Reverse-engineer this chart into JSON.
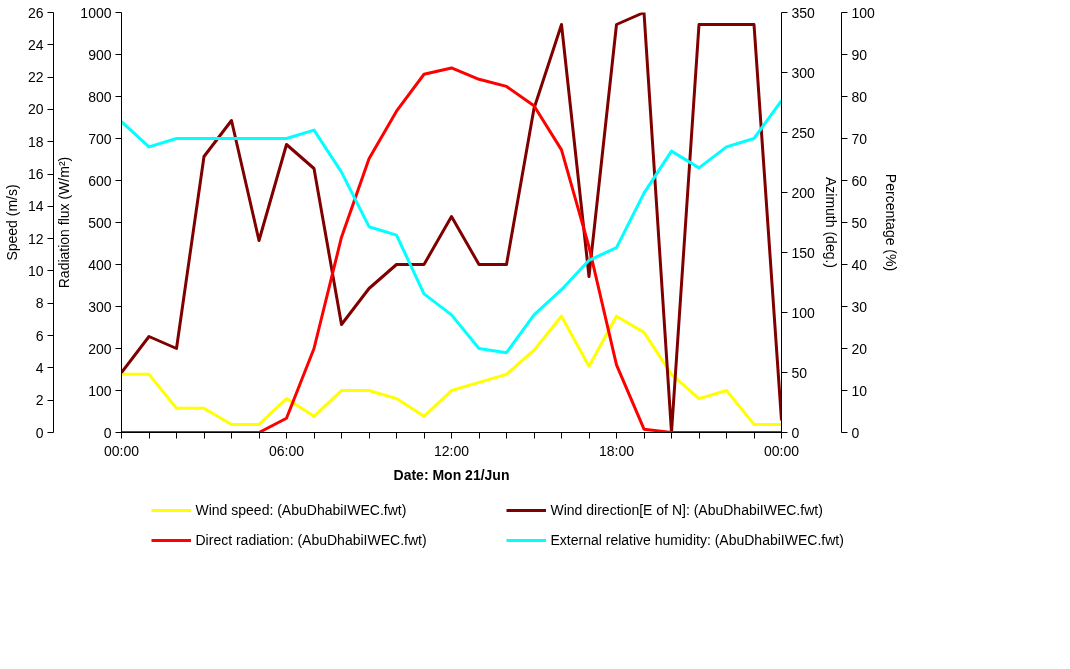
{
  "chart_data": [
    {
      "type": "line",
      "xlabel": "Date: Mon 21/Jun",
      "ylabel": "Speed (m/s)",
      "y2label": "Azimuth (deg.)",
      "x": [
        0,
        1,
        2,
        3,
        4,
        5,
        6,
        7,
        8,
        9,
        10,
        11,
        12,
        13,
        14,
        15,
        16,
        17,
        18,
        19,
        20,
        21,
        22,
        23,
        24
      ],
      "xlim": [
        0,
        24
      ],
      "xticks": [
        {
          "value": 0,
          "label": "00:00"
        },
        {
          "value": 1,
          "label": null
        },
        {
          "value": 2,
          "label": null
        },
        {
          "value": 3,
          "label": null
        },
        {
          "value": 4,
          "label": null
        },
        {
          "value": 5,
          "label": null
        },
        {
          "value": 6,
          "label": "06:00"
        },
        {
          "value": 7,
          "label": null
        },
        {
          "value": 8,
          "label": null
        },
        {
          "value": 9,
          "label": null
        },
        {
          "value": 10,
          "label": null
        },
        {
          "value": 11,
          "label": null
        },
        {
          "value": 12,
          "label": "12:00"
        },
        {
          "value": 13,
          "label": null
        },
        {
          "value": 14,
          "label": null
        },
        {
          "value": 15,
          "label": null
        },
        {
          "value": 16,
          "label": null
        },
        {
          "value": 17,
          "label": null
        },
        {
          "value": 18,
          "label": "18:00"
        },
        {
          "value": 19,
          "label": null
        },
        {
          "value": 20,
          "label": null
        },
        {
          "value": 21,
          "label": null
        },
        {
          "value": 22,
          "label": null
        },
        {
          "value": 23,
          "label": null
        },
        {
          "value": 24,
          "label": "00:00"
        }
      ],
      "ylim": [
        0,
        26
      ],
      "yticks": [
        0,
        2,
        4,
        6,
        8,
        10,
        12,
        14,
        16,
        18,
        20,
        22,
        24,
        26
      ],
      "y2lim": [
        0,
        350
      ],
      "y2ticks": [
        0,
        50,
        100,
        150,
        200,
        250,
        300,
        350
      ],
      "grid": false,
      "legend": "bottom",
      "marker": "none",
      "line_style": "solid",
      "series": [
        {
          "name": "Wind speed: (AbuDhabiIWEC.fwt)",
          "color": "#ffff00",
          "values": [
            3.6,
            3.6,
            1.5,
            1.5,
            0.5,
            0.5,
            2.1,
            1.0,
            2.6,
            2.6,
            2.1,
            1.0,
            2.6,
            3.1,
            3.6,
            5.1,
            7.2,
            4.1,
            7.2,
            6.2,
            3.6,
            2.1,
            2.6,
            0.5,
            0.5
          ]
        },
        {
          "name": "Wind direction[E of N]: (AbuDhabiIWEC.fwt)",
          "color": "#800000",
          "axis": "y2",
          "values": [
            50,
            80,
            70,
            230,
            260,
            160,
            240,
            220,
            90,
            120,
            140,
            140,
            180,
            140,
            140,
            270,
            340,
            130,
            340,
            350,
            0,
            340,
            340,
            340,
            10
          ]
        }
      ]
    },
    {
      "type": "line",
      "ylabel": "Radiation flux (W/m²)",
      "y2label": "Percentage (%)",
      "x": [
        0,
        1,
        2,
        3,
        4,
        5,
        6,
        7,
        8,
        9,
        10,
        11,
        12,
        13,
        14,
        15,
        16,
        17,
        18,
        19,
        20,
        21,
        22,
        23,
        24
      ],
      "xlim": [
        0,
        24
      ],
      "tick_labels": "y",
      "ylim": [
        0,
        1000
      ],
      "yticks": [
        0,
        100,
        200,
        300,
        400,
        500,
        600,
        700,
        800,
        900,
        1000
      ],
      "y2lim": [
        0,
        100
      ],
      "y2ticks": [
        0,
        10,
        20,
        30,
        40,
        50,
        60,
        70,
        80,
        90,
        100
      ],
      "grid": false,
      "legend": "bottom",
      "marker": "none",
      "line_style": "solid",
      "series": [
        {
          "name": "Direct radiation: (AbuDhabiIWEC.fwt)",
          "color": "#ff0000",
          "values": [
            0,
            0,
            0,
            0,
            0,
            0,
            34,
            200,
            465,
            652,
            765,
            853,
            868,
            841,
            824,
            778,
            673,
            442,
            161,
            8,
            0,
            0,
            0,
            0,
            0
          ]
        },
        {
          "name": "External relative humidity: (AbuDhabiIWEC.fwt)",
          "color": "#00ffff",
          "axis": "y2",
          "values": [
            74,
            68,
            70,
            70,
            70,
            70,
            70,
            72,
            62,
            49,
            47,
            33,
            28,
            20,
            19,
            28,
            34,
            41,
            44,
            57,
            67,
            63,
            68,
            70,
            79
          ]
        }
      ]
    }
  ]
}
